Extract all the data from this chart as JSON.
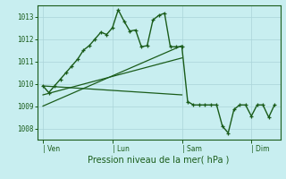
{
  "background_color": "#c8eef0",
  "grid_color": "#aad4d8",
  "line_color": "#1a5c1a",
  "title": "Pression niveau de la mer( hPa )",
  "ylim": [
    1007.5,
    1013.5
  ],
  "yticks": [
    1008,
    1009,
    1010,
    1011,
    1012,
    1013
  ],
  "x_tick_labels": [
    "| Ven",
    "| Lun",
    "| Sam",
    "| Dim"
  ],
  "x_tick_positions": [
    0,
    12,
    24,
    36
  ],
  "xlim": [
    -1,
    41
  ],
  "series1_x": [
    0,
    1,
    2,
    3,
    4,
    5,
    6,
    7,
    8,
    9,
    10,
    11,
    12,
    13,
    14,
    15,
    16,
    17,
    18,
    19,
    20,
    21,
    22,
    23,
    24,
    25,
    26,
    27,
    28,
    29,
    30,
    31,
    32,
    33,
    34,
    35,
    36,
    37,
    38,
    39,
    40
  ],
  "series1_y": [
    1009.9,
    1009.6,
    1009.9,
    1010.2,
    1010.5,
    1010.8,
    1011.1,
    1011.5,
    1011.7,
    1012.0,
    1012.3,
    1012.2,
    1012.5,
    1013.3,
    1012.8,
    1012.35,
    1012.4,
    1011.65,
    1011.7,
    1012.85,
    1013.05,
    1013.15,
    1011.65,
    1011.65,
    1011.65,
    1009.2,
    1009.05,
    1009.05,
    1009.05,
    1009.05,
    1009.05,
    1008.1,
    1007.8,
    1008.85,
    1009.05,
    1009.05,
    1008.55,
    1009.05,
    1009.05,
    1008.5,
    1009.05
  ],
  "series2_x": [
    0,
    24
  ],
  "series2_y": [
    1009.9,
    1009.5
  ],
  "series3_x": [
    0,
    24
  ],
  "series3_y": [
    1009.0,
    1011.7
  ],
  "series4_x": [
    0,
    24
  ],
  "series4_y": [
    1009.5,
    1011.15
  ]
}
